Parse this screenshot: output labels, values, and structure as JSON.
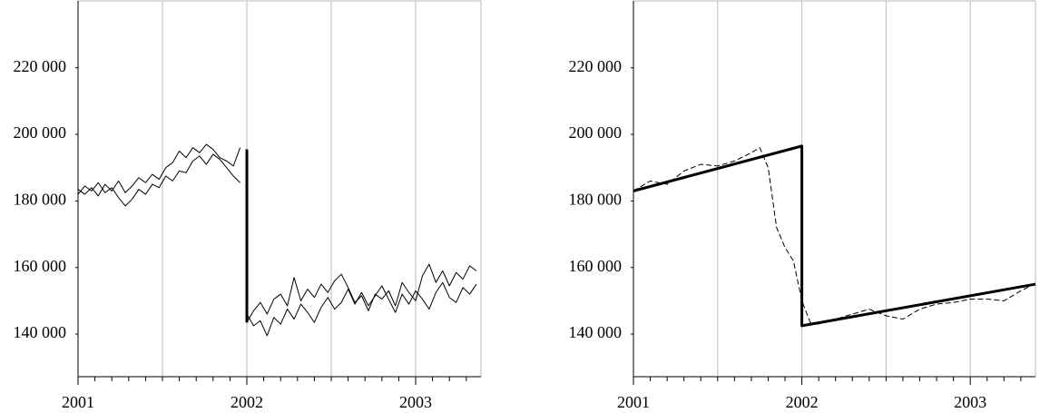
{
  "chart_data": [
    {
      "type": "line",
      "x": [
        2001.0,
        2001.04,
        2001.08,
        2001.12,
        2001.16,
        2001.2,
        2001.24,
        2001.28,
        2001.32,
        2001.36,
        2001.4,
        2001.44,
        2001.48,
        2001.52,
        2001.56,
        2001.6,
        2001.64,
        2001.68,
        2001.72,
        2001.76,
        2001.8,
        2001.84,
        2001.88,
        2001.92,
        2001.96,
        2001.98,
        2002.0,
        2002.04,
        2002.08,
        2002.12,
        2002.16,
        2002.2,
        2002.24,
        2002.28,
        2002.32,
        2002.36,
        2002.4,
        2002.44,
        2002.48,
        2002.52,
        2002.56,
        2002.6,
        2002.64,
        2002.68,
        2002.72,
        2002.76,
        2002.8,
        2002.84,
        2002.88,
        2002.92,
        2002.96,
        2003.0,
        2003.04,
        2003.08,
        2003.12,
        2003.16,
        2003.2,
        2003.24,
        2003.28,
        2003.32,
        2003.36
      ],
      "series": [
        {
          "color": "#000",
          "width": 1,
          "values": [
            183500,
            182000,
            184000,
            181500,
            185000,
            183000,
            186000,
            182500,
            184500,
            187000,
            185500,
            188000,
            186500,
            190000,
            191500,
            195000,
            193000,
            196000,
            194500,
            197000,
            195500,
            193000,
            192000,
            190500,
            196000,
            null,
            143500,
            147000,
            149500,
            146000,
            150500,
            152000,
            148500,
            157000,
            150000,
            153500,
            151000,
            155000,
            152500,
            156000,
            158000,
            154000,
            149500,
            151500,
            147000,
            152000,
            150500,
            153000,
            148500,
            155500,
            152500,
            150000,
            157500,
            161000,
            155500,
            159000,
            154500,
            158500,
            156500,
            160500,
            159000
          ]
        },
        {
          "color": "#000",
          "width": 1,
          "values": [
            182000,
            184500,
            183000,
            185500,
            182500,
            184000,
            181000,
            178500,
            180500,
            183500,
            182000,
            185000,
            184000,
            187500,
            186000,
            189000,
            188500,
            192000,
            193500,
            191000,
            194000,
            192500,
            190000,
            187500,
            185500,
            null,
            146000,
            142500,
            144000,
            139500,
            145000,
            143000,
            147500,
            144500,
            149000,
            146500,
            143500,
            148000,
            151000,
            147500,
            149500,
            153500,
            149000,
            152500,
            148500,
            151500,
            154500,
            150500,
            146500,
            152000,
            149000,
            153000,
            150500,
            147500,
            152500,
            155500,
            151000,
            149500,
            154000,
            152000,
            155000
          ]
        }
      ],
      "breaks": [
        {
          "x": [
            2002,
            2002
          ],
          "values": [
            195500,
            143500
          ],
          "color": "#000",
          "width": 3
        }
      ],
      "xlim": [
        2001,
        2003.387
      ],
      "ylim": [
        127200,
        240100
      ],
      "xticks": [
        2001,
        2002,
        2003
      ],
      "xgrid": [
        2001.5,
        2002.5
      ],
      "xminorticks": [
        2001.1,
        2001.2,
        2001.3,
        2001.4,
        2001.5,
        2001.6,
        2001.7,
        2001.8,
        2001.9,
        2002.1,
        2002.2,
        2002.3,
        2002.4,
        2002.5,
        2002.6,
        2002.7,
        2002.8,
        2002.9,
        2003.1,
        2003.2,
        2003.3
      ],
      "yticks": [
        {
          "value": 140000,
          "label": "140 000"
        },
        {
          "value": 160000,
          "label": "160 000"
        },
        {
          "value": 180000,
          "label": "180 000"
        },
        {
          "value": 200000,
          "label": "200 000"
        },
        {
          "value": 220000,
          "label": "220 000"
        }
      ],
      "grid": true
    },
    {
      "type": "line",
      "series": [
        {
          "color": "#000",
          "width": 3,
          "dash": false,
          "x": [
            2001,
            2002,
            2002,
            2003.387
          ],
          "values": [
            183000,
            196500,
            142500,
            155000
          ]
        },
        {
          "color": "#000",
          "width": 1,
          "dash": true,
          "x": [
            2001,
            2001.1,
            2001.2,
            2001.3,
            2001.4,
            2001.5,
            2001.6,
            2001.7,
            2001.75,
            2001.8,
            2001.85,
            2001.9,
            2001.95,
            2002,
            2002.05,
            2002.1,
            2002.2,
            2002.3,
            2002.4,
            2002.5,
            2002.6,
            2002.7,
            2002.8,
            2002.9,
            2003,
            2003.1,
            2003.2,
            2003.3,
            2003.38
          ],
          "values": [
            183000,
            186000,
            185000,
            189000,
            191000,
            190500,
            192000,
            194500,
            196000,
            190000,
            172000,
            166000,
            162000,
            150000,
            143500,
            143000,
            144500,
            146000,
            147500,
            145500,
            144500,
            147500,
            149000,
            149500,
            150500,
            150500,
            150000,
            153000,
            155000
          ]
        }
      ],
      "xlim": [
        2001,
        2003.387
      ],
      "ylim": [
        127200,
        240100
      ],
      "xticks": [
        2001,
        2002,
        2003
      ],
      "xgrid": [
        2001.5,
        2002.5
      ],
      "xminorticks": [
        2001.1,
        2001.2,
        2001.3,
        2001.4,
        2001.5,
        2001.6,
        2001.7,
        2001.8,
        2001.9,
        2002.1,
        2002.2,
        2002.3,
        2002.4,
        2002.5,
        2002.6,
        2002.7,
        2002.8,
        2002.9,
        2003.1,
        2003.2,
        2003.3
      ],
      "yticks": [
        {
          "value": 140000,
          "label": "140 000"
        },
        {
          "value": 160000,
          "label": "160 000"
        },
        {
          "value": 180000,
          "label": "180 000"
        },
        {
          "value": 200000,
          "label": "200 000"
        },
        {
          "value": 220000,
          "label": "220 000"
        }
      ],
      "grid": true
    }
  ]
}
